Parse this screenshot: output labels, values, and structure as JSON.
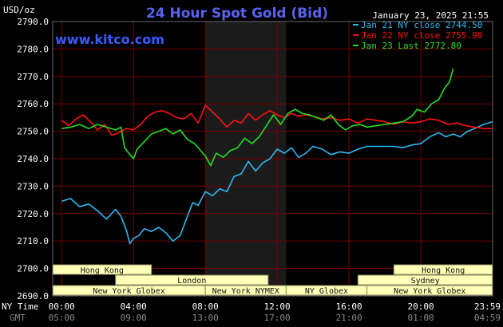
{
  "header": {
    "units": "USD/oz",
    "title": "24 Hour Spot Gold (Bid)",
    "brand": "www.kitco.com",
    "timestamp": "January 23, 2025 21:55"
  },
  "axis_labels": {
    "ny_time": "NY Time",
    "gmt": "GMT"
  },
  "colors": {
    "background": "#000000",
    "grid": "#7a0000",
    "trading_band": "#1b1b1b",
    "jan21": "#2bb7f2",
    "jan22": "#ff1010",
    "jan23": "#22e022",
    "title": "#5a62f0",
    "brand": "#3b5bff",
    "market_box_fill": "#ffffb8",
    "market_box_stroke": "#8a8a60"
  },
  "markets": [
    {
      "label": "Hong Kong",
      "start": -0.5,
      "end": 5.0,
      "row": 0
    },
    {
      "label": "Hong Kong",
      "start": 18.5,
      "end": 24.0,
      "row": 0
    },
    {
      "label": "London",
      "start": 3.0,
      "end": 11.5,
      "row": 1
    },
    {
      "label": "Sydney",
      "start": 16.5,
      "end": 24.0,
      "row": 1
    },
    {
      "label": "New York Globex",
      "start": -0.5,
      "end": 8.0,
      "row": 2
    },
    {
      "label": "New York NYMEX",
      "start": 8.0,
      "end": 12.5,
      "row": 2
    },
    {
      "label": "NY Globex",
      "start": 12.5,
      "end": 17.0,
      "row": 2
    },
    {
      "label": "New York Globex",
      "start": 17.0,
      "end": 24.0,
      "row": 2
    }
  ],
  "chart_data": {
    "type": "line",
    "title": "24 Hour Spot Gold (Bid)",
    "ylabel": "USD/oz",
    "xlabel": "NY Time",
    "ylim": [
      2690,
      2790
    ],
    "xlim": [
      -0.5,
      24.0
    ],
    "yticks": [
      2690,
      2700,
      2710,
      2720,
      2730,
      2740,
      2750,
      2760,
      2770,
      2780,
      2790
    ],
    "ytick_labels": [
      "2690.0",
      "2700.0",
      "2710.0",
      "2720.0",
      "2730.0",
      "2740.0",
      "2750.0",
      "2760.0",
      "2770.0",
      "2780.0",
      "2790.0"
    ],
    "xticks": [
      0,
      4,
      8,
      12,
      16,
      20,
      24
    ],
    "xtick_labels_ny": [
      "00:00",
      "04:00",
      "08:00",
      "12:00",
      "16:00",
      "20:00",
      "23:59"
    ],
    "xtick_labels_gmt": [
      "05:00",
      "09:00",
      "13:00",
      "17:00",
      "21:00",
      "01:00",
      "04:59"
    ],
    "trading_session": [
      8.0,
      12.5
    ],
    "grid": true,
    "legend_position": "top-right",
    "series": [
      {
        "name": "Jan 21 NY close 2744.50",
        "color": "#2bb7f2",
        "points": [
          [
            0.0,
            2724.5
          ],
          [
            0.5,
            2725.5
          ],
          [
            1.0,
            2722.5
          ],
          [
            1.5,
            2723.5
          ],
          [
            2.0,
            2721.0
          ],
          [
            2.5,
            2718.0
          ],
          [
            3.0,
            2721.5
          ],
          [
            3.3,
            2719.0
          ],
          [
            3.6,
            2714.0
          ],
          [
            3.8,
            2709.0
          ],
          [
            4.0,
            2711.0
          ],
          [
            4.3,
            2712.0
          ],
          [
            4.6,
            2714.5
          ],
          [
            5.0,
            2713.5
          ],
          [
            5.4,
            2715.0
          ],
          [
            5.8,
            2713.0
          ],
          [
            6.2,
            2710.0
          ],
          [
            6.6,
            2712.0
          ],
          [
            7.0,
            2719.0
          ],
          [
            7.3,
            2724.0
          ],
          [
            7.6,
            2723.0
          ],
          [
            8.0,
            2728.0
          ],
          [
            8.4,
            2726.5
          ],
          [
            8.8,
            2729.0
          ],
          [
            9.2,
            2728.0
          ],
          [
            9.6,
            2733.5
          ],
          [
            10.0,
            2734.5
          ],
          [
            10.4,
            2739.0
          ],
          [
            10.8,
            2735.5
          ],
          [
            11.2,
            2738.5
          ],
          [
            11.6,
            2740.0
          ],
          [
            12.0,
            2743.5
          ],
          [
            12.4,
            2742.0
          ],
          [
            12.8,
            2744.0
          ],
          [
            13.2,
            2740.5
          ],
          [
            13.6,
            2742.0
          ],
          [
            14.0,
            2744.5
          ],
          [
            14.5,
            2743.5
          ],
          [
            15.0,
            2741.5
          ],
          [
            15.5,
            2742.5
          ],
          [
            16.0,
            2742.0
          ],
          [
            16.5,
            2743.5
          ],
          [
            17.0,
            2744.5
          ],
          [
            17.5,
            2744.5
          ],
          [
            18.0,
            2744.5
          ],
          [
            18.5,
            2744.5
          ],
          [
            19.0,
            2744.0
          ],
          [
            19.5,
            2745.0
          ],
          [
            20.0,
            2745.5
          ],
          [
            20.5,
            2748.0
          ],
          [
            21.0,
            2749.5
          ],
          [
            21.4,
            2748.0
          ],
          [
            21.8,
            2749.0
          ],
          [
            22.2,
            2748.0
          ],
          [
            22.6,
            2750.0
          ],
          [
            23.0,
            2751.0
          ],
          [
            23.5,
            2752.5
          ],
          [
            24.0,
            2753.5
          ]
        ]
      },
      {
        "name": "Jan 22 NY close 2755.90",
        "color": "#ff1010",
        "points": [
          [
            0.0,
            2754.0
          ],
          [
            0.4,
            2752.0
          ],
          [
            0.8,
            2754.5
          ],
          [
            1.2,
            2756.0
          ],
          [
            1.6,
            2753.5
          ],
          [
            2.0,
            2750.5
          ],
          [
            2.4,
            2752.5
          ],
          [
            2.8,
            2748.5
          ],
          [
            3.2,
            2749.5
          ],
          [
            3.6,
            2751.0
          ],
          [
            4.0,
            2750.5
          ],
          [
            4.4,
            2752.5
          ],
          [
            4.8,
            2755.5
          ],
          [
            5.2,
            2757.0
          ],
          [
            5.6,
            2757.5
          ],
          [
            6.0,
            2756.5
          ],
          [
            6.4,
            2755.0
          ],
          [
            6.8,
            2754.5
          ],
          [
            7.2,
            2756.5
          ],
          [
            7.6,
            2753.0
          ],
          [
            8.0,
            2759.5
          ],
          [
            8.4,
            2757.0
          ],
          [
            8.8,
            2754.5
          ],
          [
            9.2,
            2751.5
          ],
          [
            9.6,
            2754.0
          ],
          [
            10.0,
            2753.0
          ],
          [
            10.4,
            2756.5
          ],
          [
            10.8,
            2754.0
          ],
          [
            11.2,
            2756.0
          ],
          [
            11.6,
            2757.5
          ],
          [
            12.0,
            2756.0
          ],
          [
            12.4,
            2755.0
          ],
          [
            12.8,
            2756.5
          ],
          [
            13.2,
            2755.5
          ],
          [
            13.6,
            2756.0
          ],
          [
            14.0,
            2755.5
          ],
          [
            14.5,
            2754.5
          ],
          [
            15.0,
            2755.0
          ],
          [
            15.5,
            2754.0
          ],
          [
            16.0,
            2754.5
          ],
          [
            16.5,
            2753.0
          ],
          [
            17.0,
            2754.5
          ],
          [
            17.5,
            2754.0
          ],
          [
            18.0,
            2753.5
          ],
          [
            18.5,
            2752.5
          ],
          [
            19.0,
            2753.5
          ],
          [
            19.5,
            2753.0
          ],
          [
            20.0,
            2753.5
          ],
          [
            20.5,
            2754.5
          ],
          [
            21.0,
            2754.0
          ],
          [
            21.5,
            2752.5
          ],
          [
            22.0,
            2753.0
          ],
          [
            22.5,
            2752.0
          ],
          [
            23.0,
            2751.5
          ],
          [
            23.5,
            2751.0
          ],
          [
            24.0,
            2751.0
          ]
        ]
      },
      {
        "name": "Jan 23 Last 2772.80",
        "color": "#22e022",
        "points": [
          [
            0.0,
            2751.0
          ],
          [
            0.5,
            2751.5
          ],
          [
            1.0,
            2752.5
          ],
          [
            1.5,
            2751.0
          ],
          [
            2.0,
            2752.5
          ],
          [
            2.5,
            2751.5
          ],
          [
            3.0,
            2750.5
          ],
          [
            3.3,
            2751.5
          ],
          [
            3.5,
            2744.0
          ],
          [
            3.8,
            2741.5
          ],
          [
            4.0,
            2740.0
          ],
          [
            4.2,
            2743.5
          ],
          [
            4.5,
            2745.5
          ],
          [
            5.0,
            2749.0
          ],
          [
            5.4,
            2750.0
          ],
          [
            5.8,
            2751.0
          ],
          [
            6.2,
            2749.0
          ],
          [
            6.6,
            2750.5
          ],
          [
            7.0,
            2747.0
          ],
          [
            7.4,
            2745.5
          ],
          [
            7.8,
            2742.5
          ],
          [
            8.0,
            2741.0
          ],
          [
            8.3,
            2737.5
          ],
          [
            8.6,
            2742.0
          ],
          [
            9.0,
            2740.5
          ],
          [
            9.4,
            2743.0
          ],
          [
            9.8,
            2744.0
          ],
          [
            10.2,
            2747.5
          ],
          [
            10.6,
            2745.5
          ],
          [
            11.0,
            2748.0
          ],
          [
            11.4,
            2752.0
          ],
          [
            11.8,
            2756.0
          ],
          [
            12.2,
            2752.5
          ],
          [
            12.6,
            2756.5
          ],
          [
            13.0,
            2758.0
          ],
          [
            13.4,
            2756.5
          ],
          [
            13.8,
            2756.0
          ],
          [
            14.2,
            2755.0
          ],
          [
            14.6,
            2754.0
          ],
          [
            15.0,
            2756.0
          ],
          [
            15.4,
            2752.5
          ],
          [
            15.8,
            2750.5
          ],
          [
            16.2,
            2752.0
          ],
          [
            16.6,
            2752.5
          ],
          [
            17.0,
            2751.5
          ],
          [
            17.5,
            2752.0
          ],
          [
            18.0,
            2752.5
          ],
          [
            18.5,
            2753.0
          ],
          [
            19.0,
            2753.5
          ],
          [
            19.5,
            2755.5
          ],
          [
            19.8,
            2758.0
          ],
          [
            20.2,
            2757.0
          ],
          [
            20.6,
            2760.0
          ],
          [
            21.0,
            2761.5
          ],
          [
            21.3,
            2765.5
          ],
          [
            21.6,
            2768.0
          ],
          [
            21.8,
            2772.8
          ]
        ]
      }
    ]
  }
}
